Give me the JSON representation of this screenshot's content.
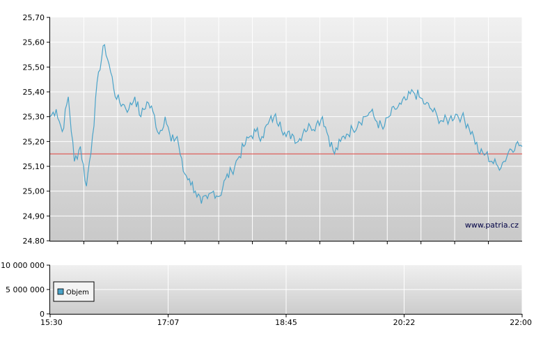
{
  "watermark": "www.patria.cz",
  "colors": {
    "price_line": "#4aa3c9",
    "reference_line": "#e0403a",
    "volume_swatch": "#4aa3c9"
  },
  "chart_data": [
    {
      "type": "line",
      "name": "price",
      "ylim": [
        24.8,
        25.7
      ],
      "yticks": [
        "25,70",
        "25,60",
        "25,50",
        "25,40",
        "25,30",
        "25,20",
        "25,10",
        "25,00",
        "24,90",
        "24.80"
      ],
      "xlim": [
        "15:30",
        "22:00"
      ],
      "reference_value": 25.15,
      "grid": true,
      "x": [
        "15:30",
        "15:35",
        "15:40",
        "15:45",
        "15:50",
        "15:55",
        "16:00",
        "16:05",
        "16:10",
        "16:15",
        "16:20",
        "16:25",
        "16:30",
        "16:35",
        "16:40",
        "16:45",
        "16:50",
        "16:55",
        "17:00",
        "17:05",
        "17:10",
        "17:15",
        "17:20",
        "17:25",
        "17:30",
        "17:35",
        "17:40",
        "17:45",
        "17:50",
        "17:55",
        "18:00",
        "18:05",
        "18:10",
        "18:15",
        "18:20",
        "18:25",
        "18:30",
        "18:35",
        "18:40",
        "18:45",
        "18:50",
        "18:55",
        "19:00",
        "19:05",
        "19:10",
        "19:15",
        "19:20",
        "19:25",
        "19:30",
        "19:35",
        "19:40",
        "19:45",
        "19:50",
        "19:55",
        "20:00",
        "20:05",
        "20:10",
        "20:15",
        "20:20",
        "20:25",
        "20:30",
        "20:35",
        "20:40",
        "20:45",
        "20:50",
        "20:55",
        "21:00",
        "21:05",
        "21:10",
        "21:15",
        "21:20",
        "21:25",
        "21:30",
        "21:35",
        "21:40",
        "21:45",
        "21:50",
        "21:55",
        "22:00"
      ],
      "series": [
        {
          "values": [
            25.3,
            25.33,
            25.24,
            25.38,
            25.12,
            25.18,
            25.02,
            25.22,
            25.48,
            25.59,
            25.48,
            25.37,
            25.35,
            25.33,
            25.38,
            25.3,
            25.36,
            25.32,
            25.23,
            25.3,
            25.2,
            25.22,
            25.08,
            25.05,
            25.0,
            24.95,
            24.97,
            25.0,
            24.98,
            25.05,
            25.08,
            25.13,
            25.18,
            25.22,
            25.24,
            25.22,
            25.27,
            25.3,
            25.28,
            25.22,
            25.23,
            25.2,
            25.25,
            25.26,
            25.27,
            25.3,
            25.22,
            25.15,
            25.2,
            25.23,
            25.25,
            25.28,
            25.3,
            25.32,
            25.28,
            25.25,
            25.3,
            25.33,
            25.35,
            25.37,
            25.4,
            25.38,
            25.35,
            25.33,
            25.3,
            25.28,
            25.29,
            25.31,
            25.3,
            25.27,
            25.22,
            25.15,
            25.15,
            25.12,
            25.1,
            25.12,
            25.17,
            25.19,
            25.18
          ]
        }
      ]
    },
    {
      "type": "bar",
      "name": "volume",
      "ylim": [
        0,
        10000000
      ],
      "yticks": [
        "10 000 000",
        "5 000 000",
        "0"
      ],
      "xticks": [
        "15:30",
        "17:07",
        "18:45",
        "20:22",
        "22:00"
      ],
      "legend": [
        "Objem"
      ],
      "legend_position": "left",
      "grid": true
    }
  ]
}
